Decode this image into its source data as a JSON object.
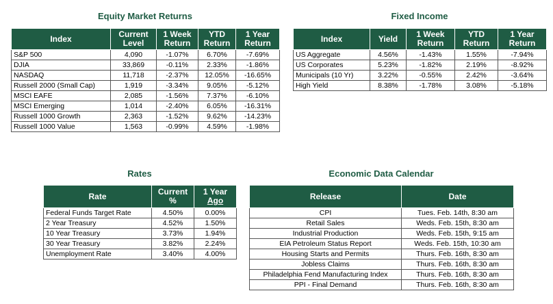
{
  "equity": {
    "title": "Equity Market Returns",
    "headers": {
      "index": "Index",
      "current_1": "Current",
      "current_2": "Level",
      "week_1": "1 Week",
      "week_2": "Return",
      "ytd_1": "YTD",
      "ytd_2": "Return",
      "year_1": "1 Year",
      "year_2": "Return"
    },
    "rows": [
      {
        "name": "S&P 500",
        "level": "4,090",
        "week": "-1.07%",
        "ytd": "6.70%",
        "year": "-7.69%"
      },
      {
        "name": "DJIA",
        "level": "33,869",
        "week": "-0.11%",
        "ytd": "2.33%",
        "year": "-1.86%"
      },
      {
        "name": "NASDAQ",
        "level": "11,718",
        "week": "-2.37%",
        "ytd": "12.05%",
        "year": "-16.65%"
      },
      {
        "name": "Russell 2000 (Small Cap)",
        "level": "1,919",
        "week": "-3.34%",
        "ytd": "9.05%",
        "year": "-5.12%"
      },
      {
        "name": "MSCI EAFE",
        "level": "2,085",
        "week": "-1.56%",
        "ytd": "7.37%",
        "year": "-6.10%"
      },
      {
        "name": "MSCI Emerging",
        "level": "1,014",
        "week": "-2.40%",
        "ytd": "6.05%",
        "year": "-16.31%"
      },
      {
        "name": "Russell 1000 Growth",
        "level": "2,363",
        "week": "-1.52%",
        "ytd": "9.62%",
        "year": "-14.23%"
      },
      {
        "name": "Russell 1000 Value",
        "level": "1,563",
        "week": "-0.99%",
        "ytd": "4.59%",
        "year": "-1.98%"
      }
    ]
  },
  "fixed": {
    "title": "Fixed Income",
    "headers": {
      "index": "Index",
      "yield": "Yield",
      "week_1": "1 Week",
      "week_2": "Return",
      "ytd_1": "YTD",
      "ytd_2": "Return",
      "year_1": "1 Year",
      "year_2": "Return"
    },
    "rows": [
      {
        "name": "US Aggregate",
        "yield": "4.56%",
        "week": "-1.43%",
        "ytd": "1.55%",
        "year": "-7.94%"
      },
      {
        "name": "US Corporates",
        "yield": "5.23%",
        "week": "-1.82%",
        "ytd": "2.19%",
        "year": "-8.92%"
      },
      {
        "name": "Municipals (10 Yr)",
        "yield": "3.22%",
        "week": "-0.55%",
        "ytd": "2.42%",
        "year": "-3.64%"
      },
      {
        "name": "High Yield",
        "yield": "8.38%",
        "week": "-1.78%",
        "ytd": "3.08%",
        "year": "-5.18%"
      }
    ]
  },
  "rates": {
    "title": "Rates",
    "headers": {
      "rate": "Rate",
      "current_1": "Current",
      "current_2": "%",
      "year_1": "1 Year",
      "year_2": "Ago"
    },
    "rows": [
      {
        "name": "Federal Funds Target Rate",
        "current": "4.50%",
        "ago": "0.00%"
      },
      {
        "name": "2 Year Treasury",
        "current": "4.52%",
        "ago": "1.50%"
      },
      {
        "name": "10 Year Treasury",
        "current": "3.73%",
        "ago": "1.94%"
      },
      {
        "name": "30 Year Treasury",
        "current": "3.82%",
        "ago": "2.24%"
      },
      {
        "name": "Unemployment Rate",
        "current": "3.40%",
        "ago": "4.00%"
      }
    ]
  },
  "calendar": {
    "title": "Economic Data Calendar",
    "headers": {
      "release": "Release",
      "date": "Date"
    },
    "rows": [
      {
        "release": "CPI",
        "date": "Tues. Feb. 14th, 8:30 am"
      },
      {
        "release": "Retail Sales",
        "date": "Weds. Feb. 15th, 8:30 am"
      },
      {
        "release": "Industrial Production",
        "date": "Weds. Feb. 15th, 9:15 am"
      },
      {
        "release": "EIA Petroleum Status Report",
        "date": "Weds. Feb. 15th, 10:30 am"
      },
      {
        "release": "Housing Starts and Permits",
        "date": "Thurs. Feb. 16th, 8:30 am"
      },
      {
        "release": "Jobless Claims",
        "date": "Thurs. Feb. 16th, 8:30 am"
      },
      {
        "release": "Philadelphia Fend Manufacturing Index",
        "date": "Thurs. Feb. 16th, 8:30 am"
      },
      {
        "release": "PPI - Final Demand",
        "date": "Thurs. Feb. 16th, 8:30 am"
      }
    ]
  },
  "colors": {
    "header_bg": "#1f5c44",
    "title_text": "#1f5c44",
    "header_text": "#ffffff"
  }
}
